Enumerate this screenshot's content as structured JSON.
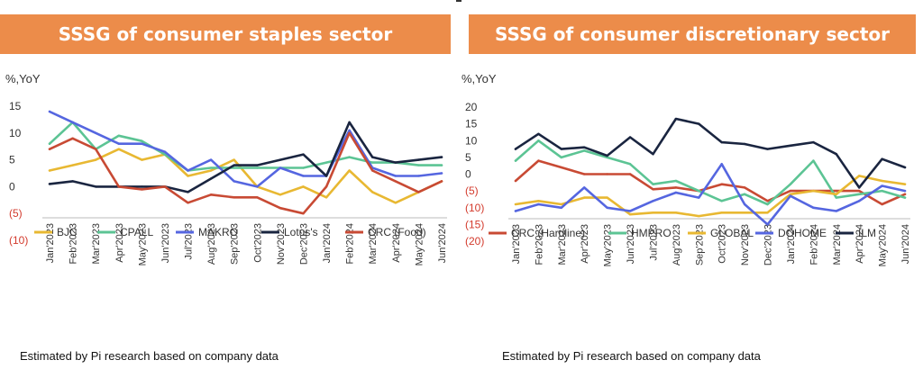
{
  "chart_data": [
    {
      "type": "line",
      "title": "SSSG of consumer staples sector",
      "ylabel": "%,YoY",
      "ylim": [
        -10,
        15
      ],
      "yticks": [
        15,
        10,
        5,
        0,
        -5,
        -10
      ],
      "ytick_labels": [
        "15",
        "10",
        "5",
        "0",
        "(5)",
        "(10)"
      ],
      "grid": false,
      "legend_position": "bottom",
      "categories": [
        "Jan'2023",
        "Feb'2023",
        "Mar'2023",
        "Apr'2023",
        "May'2023",
        "Jun'2023",
        "Jul'2023",
        "Aug'2023",
        "Sep'2023",
        "Oct'2023",
        "Nov'2023",
        "Dec'2023",
        "Jan'2024",
        "Feb'2024",
        "Mar'2024",
        "Apr'2024",
        "May'2024",
        "Jun'2024"
      ],
      "series": [
        {
          "name": "BJC",
          "color": "#e8b832",
          "values": [
            3,
            4,
            5,
            7,
            5,
            6,
            2,
            3,
            5,
            0,
            -1.5,
            0,
            -2,
            3,
            -1,
            -3,
            -1,
            1
          ]
        },
        {
          "name": "CPALL",
          "color": "#5cc494",
          "values": [
            8,
            12,
            7,
            9.5,
            8.5,
            6,
            3,
            3.5,
            3.5,
            3.5,
            3.5,
            3.5,
            4.5,
            5.5,
            4.5,
            4.5,
            4,
            4
          ]
        },
        {
          "name": "MAKRO",
          "color": "#5566e0",
          "values": [
            14,
            12,
            10,
            8,
            8,
            6.5,
            3,
            5,
            1,
            0,
            3.5,
            2,
            2,
            10.5,
            3.5,
            2,
            2,
            2.5
          ]
        },
        {
          "name": "Lotus's",
          "color": "#1a2540",
          "values": [
            0.5,
            1,
            0,
            0,
            0,
            0,
            -1,
            1.5,
            4,
            4,
            5,
            6,
            2,
            12,
            5.5,
            4.5,
            5,
            5.5
          ]
        },
        {
          "name": "CRC (Food)",
          "color": "#c84a34",
          "values": [
            7,
            9,
            7,
            0,
            -0.5,
            0,
            -3,
            -1.5,
            -2,
            -2,
            -4,
            -5,
            0,
            10,
            3,
            1,
            -1,
            1
          ]
        }
      ]
    },
    {
      "type": "line",
      "title": "SSSG of consumer discretionary sector",
      "ylabel": "%,YoY",
      "ylim": [
        -20,
        20
      ],
      "yticks": [
        20,
        15,
        10,
        5,
        0,
        -5,
        -10,
        -15,
        -20
      ],
      "ytick_labels": [
        "20",
        "15",
        "10",
        "5",
        "0",
        "(5)",
        "(10)",
        "(15)",
        "(20)"
      ],
      "grid": false,
      "legend_position": "bottom",
      "categories": [
        "Jan'2023",
        "Feb'2023",
        "Mar'2023",
        "Apr'2023",
        "May'2023",
        "Jun'2023",
        "Jul'2023",
        "Aug'2023",
        "Sep'2023",
        "Oct'2023",
        "Nov'2023",
        "Dec'2023",
        "Jan'2024",
        "Feb'2024",
        "Mar'2024",
        "Apr'2024",
        "May'2024",
        "Jun'2024"
      ],
      "series": [
        {
          "name": "CRC (Hardline)",
          "color": "#c84a34",
          "values": [
            -2,
            4,
            2,
            0,
            0,
            0,
            -4.5,
            -4,
            -5,
            -3,
            -4,
            -8,
            -5,
            -5,
            -5,
            -5,
            -9,
            -6
          ]
        },
        {
          "name": "HMPRO",
          "color": "#5cc494",
          "values": [
            4,
            10,
            5,
            7,
            5,
            3,
            -3,
            -2,
            -5,
            -8,
            -6,
            -9,
            -3,
            4,
            -7,
            -6,
            -5,
            -7
          ]
        },
        {
          "name": "GLOBAL",
          "color": "#e8b832",
          "values": [
            -9,
            -8,
            -9,
            -7,
            -7,
            -12,
            -11.5,
            -11.5,
            -12.5,
            -11.5,
            -11.5,
            -11.5,
            -6,
            -5,
            -6,
            -0.5,
            -2,
            -3
          ]
        },
        {
          "name": "DOHOME",
          "color": "#5566e0",
          "values": [
            -11,
            -9,
            -10,
            -4,
            -10,
            -11,
            -8,
            -5.5,
            -7,
            3,
            -9,
            -15,
            -6.5,
            -10,
            -11,
            -8,
            -3.5,
            -5
          ]
        },
        {
          "name": "ILM",
          "color": "#1a2540",
          "values": [
            7.5,
            12,
            7.5,
            8,
            5.5,
            11,
            6,
            16.5,
            15,
            9.5,
            9,
            7.5,
            8.5,
            9.5,
            6,
            -4,
            4.5,
            2
          ]
        }
      ]
    }
  ],
  "source_note": "Estimated by Pi research based on company data"
}
